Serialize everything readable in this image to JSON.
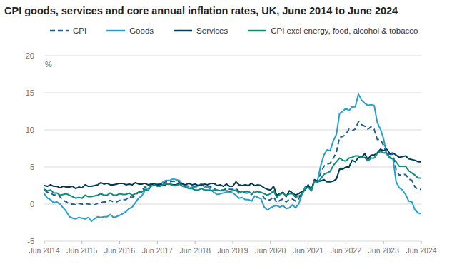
{
  "chart_data": {
    "type": "line",
    "title": "CPI goods, services and core annual inflation rates, UK, June 2014 to June 2024",
    "y_label": "%",
    "categories": [
      "Jun 2014",
      null,
      null,
      null,
      null,
      null,
      null,
      null,
      null,
      null,
      null,
      null,
      "Jun 2015",
      null,
      null,
      null,
      null,
      null,
      null,
      null,
      null,
      null,
      null,
      null,
      "Jun 2016",
      null,
      null,
      null,
      null,
      null,
      null,
      null,
      null,
      null,
      null,
      null,
      "Jun 2017",
      null,
      null,
      null,
      null,
      null,
      null,
      null,
      null,
      null,
      null,
      null,
      "Jun 2018",
      null,
      null,
      null,
      null,
      null,
      null,
      null,
      null,
      null,
      null,
      null,
      "Jun 2019",
      null,
      null,
      null,
      null,
      null,
      null,
      null,
      null,
      null,
      null,
      null,
      "Jun 2020",
      null,
      null,
      null,
      null,
      null,
      null,
      null,
      null,
      null,
      null,
      null,
      "Jun 2021",
      null,
      null,
      null,
      null,
      null,
      null,
      null,
      null,
      null,
      null,
      null,
      "Jun 2022",
      null,
      null,
      null,
      null,
      null,
      null,
      null,
      null,
      null,
      null,
      null,
      "Jun 2023",
      null,
      null,
      null,
      null,
      null,
      null,
      null,
      null,
      null,
      null,
      null,
      "Jun 2024"
    ],
    "series": [
      {
        "name": "CPI",
        "color": "#206095",
        "line_style": "dashed",
        "values": [
          1.9,
          1.6,
          1.5,
          1.2,
          1.3,
          1.0,
          0.5,
          0.3,
          0.0,
          0.0,
          -0.1,
          0.1,
          0.0,
          0.1,
          0.0,
          -0.1,
          -0.1,
          0.1,
          0.2,
          0.3,
          0.3,
          0.5,
          0.3,
          0.3,
          0.5,
          0.6,
          0.6,
          1.0,
          0.9,
          1.2,
          1.6,
          1.8,
          2.3,
          2.3,
          2.7,
          2.9,
          2.6,
          2.6,
          2.9,
          3.0,
          3.0,
          3.1,
          3.0,
          3.0,
          2.7,
          2.5,
          2.4,
          2.4,
          2.4,
          2.5,
          2.7,
          2.4,
          2.4,
          2.3,
          2.1,
          1.8,
          1.9,
          1.9,
          2.1,
          2.0,
          2.0,
          2.1,
          1.7,
          1.7,
          1.5,
          1.5,
          1.3,
          1.8,
          1.7,
          1.5,
          0.8,
          0.5,
          0.6,
          1.0,
          0.2,
          0.5,
          0.7,
          0.3,
          0.6,
          0.7,
          0.4,
          0.7,
          1.5,
          2.1,
          2.5,
          2.0,
          3.2,
          3.1,
          4.2,
          5.1,
          5.4,
          5.5,
          6.2,
          7.0,
          9.0,
          9.1,
          9.4,
          10.1,
          9.9,
          10.1,
          11.1,
          10.7,
          10.5,
          10.1,
          10.4,
          10.1,
          8.7,
          8.7,
          7.9,
          6.8,
          6.7,
          6.7,
          4.6,
          3.9,
          4.0,
          4.0,
          3.4,
          3.2,
          2.3,
          2.0,
          2.0
        ]
      },
      {
        "name": "Goods",
        "color": "#27a0cc",
        "line_style": "solid",
        "values": [
          1.4,
          0.8,
          0.6,
          0.2,
          0.3,
          0.0,
          -0.5,
          -1.0,
          -1.7,
          -1.9,
          -2.0,
          -1.8,
          -1.9,
          -2.0,
          -1.8,
          -2.3,
          -2.0,
          -1.7,
          -1.8,
          -1.7,
          -1.7,
          -1.4,
          -1.8,
          -1.7,
          -1.5,
          -1.3,
          -1.0,
          -0.6,
          -0.4,
          0.2,
          0.8,
          1.1,
          1.8,
          2.1,
          2.5,
          2.8,
          2.8,
          2.6,
          3.1,
          3.2,
          3.2,
          3.4,
          3.3,
          3.2,
          2.7,
          2.4,
          2.1,
          2.3,
          2.2,
          2.5,
          2.7,
          2.3,
          2.3,
          1.9,
          1.6,
          1.3,
          1.4,
          1.5,
          1.6,
          1.6,
          1.5,
          1.2,
          0.8,
          0.9,
          0.6,
          0.6,
          0.4,
          1.1,
          0.9,
          0.7,
          -0.4,
          -0.8,
          -0.5,
          -0.3,
          -0.2,
          -0.4,
          -0.2,
          -0.6,
          -0.5,
          -0.1,
          -0.5,
          0.0,
          1.3,
          2.3,
          2.4,
          2.1,
          3.0,
          3.2,
          5.2,
          6.6,
          7.3,
          7.2,
          8.5,
          9.4,
          12.2,
          12.5,
          12.9,
          12.6,
          13.1,
          13.1,
          14.8,
          14.0,
          13.6,
          13.3,
          13.4,
          13.3,
          11.0,
          10.1,
          8.8,
          6.7,
          6.3,
          6.1,
          3.0,
          2.2,
          1.9,
          1.3,
          0.4,
          0.3,
          -0.8,
          -1.2,
          -1.3
        ]
      },
      {
        "name": "Services",
        "color": "#003c57",
        "line_style": "solid",
        "values": [
          2.5,
          2.4,
          2.6,
          2.4,
          2.4,
          2.2,
          2.4,
          2.3,
          2.3,
          2.4,
          2.1,
          2.3,
          2.2,
          2.6,
          2.4,
          2.4,
          2.5,
          2.6,
          2.9,
          2.7,
          2.8,
          2.6,
          2.6,
          2.7,
          2.8,
          2.8,
          2.6,
          2.7,
          2.6,
          2.9,
          2.7,
          2.7,
          2.8,
          2.6,
          2.7,
          2.7,
          2.6,
          2.7,
          2.5,
          2.7,
          2.7,
          2.6,
          2.6,
          2.8,
          2.7,
          2.6,
          2.8,
          2.6,
          2.7,
          2.5,
          2.6,
          2.7,
          2.6,
          2.8,
          2.8,
          2.5,
          2.6,
          2.4,
          2.7,
          2.4,
          2.4,
          3.0,
          2.6,
          2.5,
          2.6,
          2.5,
          2.8,
          2.5,
          2.6,
          2.5,
          2.2,
          2.0,
          1.9,
          2.4,
          1.2,
          1.4,
          1.6,
          1.0,
          1.8,
          1.5,
          1.2,
          1.4,
          1.7,
          1.9,
          2.6,
          1.8,
          3.3,
          3.1,
          3.1,
          3.3,
          3.0,
          3.0,
          3.1,
          3.4,
          4.7,
          4.7,
          5.0,
          5.0,
          5.9,
          5.7,
          6.3,
          6.3,
          6.8,
          6.0,
          6.6,
          6.6,
          6.9,
          7.4,
          7.2,
          7.4,
          6.8,
          6.9,
          6.6,
          6.3,
          6.4,
          6.5,
          6.1,
          6.0,
          5.9,
          5.7,
          5.7
        ]
      },
      {
        "name": "CPI excl energy, food, alcohol & tobacco",
        "color": "#118c7b",
        "line_style": "solid",
        "values": [
          2.0,
          1.8,
          1.9,
          1.5,
          1.5,
          1.2,
          1.3,
          1.4,
          1.2,
          1.0,
          0.8,
          0.9,
          0.8,
          1.2,
          1.0,
          1.0,
          1.1,
          1.2,
          1.4,
          1.2,
          1.2,
          1.5,
          1.2,
          1.2,
          1.4,
          1.3,
          1.3,
          1.5,
          1.2,
          1.4,
          1.6,
          1.6,
          2.0,
          1.8,
          2.4,
          2.6,
          2.4,
          2.4,
          2.7,
          2.7,
          2.7,
          2.5,
          2.5,
          2.7,
          2.4,
          2.3,
          2.1,
          2.1,
          1.9,
          1.9,
          2.1,
          1.9,
          1.9,
          1.8,
          1.9,
          1.9,
          1.8,
          1.8,
          1.8,
          1.7,
          1.8,
          1.9,
          1.5,
          1.7,
          1.7,
          1.7,
          1.4,
          1.6,
          1.7,
          1.6,
          1.4,
          1.2,
          1.4,
          1.8,
          0.9,
          1.3,
          1.5,
          1.1,
          1.4,
          1.4,
          0.9,
          1.1,
          1.3,
          2.0,
          2.3,
          1.8,
          3.1,
          2.9,
          3.4,
          4.0,
          4.2,
          4.4,
          5.2,
          5.7,
          6.2,
          5.9,
          5.8,
          6.2,
          6.3,
          6.5,
          6.5,
          6.3,
          6.3,
          5.8,
          6.2,
          6.2,
          6.8,
          7.1,
          6.9,
          6.9,
          6.2,
          6.1,
          5.7,
          5.1,
          5.1,
          5.1,
          4.5,
          4.2,
          3.9,
          3.5,
          3.5
        ]
      }
    ],
    "ylim": [
      -5,
      20
    ],
    "yticks": [
      -5,
      0,
      5,
      10,
      15,
      20
    ],
    "grid": true,
    "legend": "top"
  }
}
